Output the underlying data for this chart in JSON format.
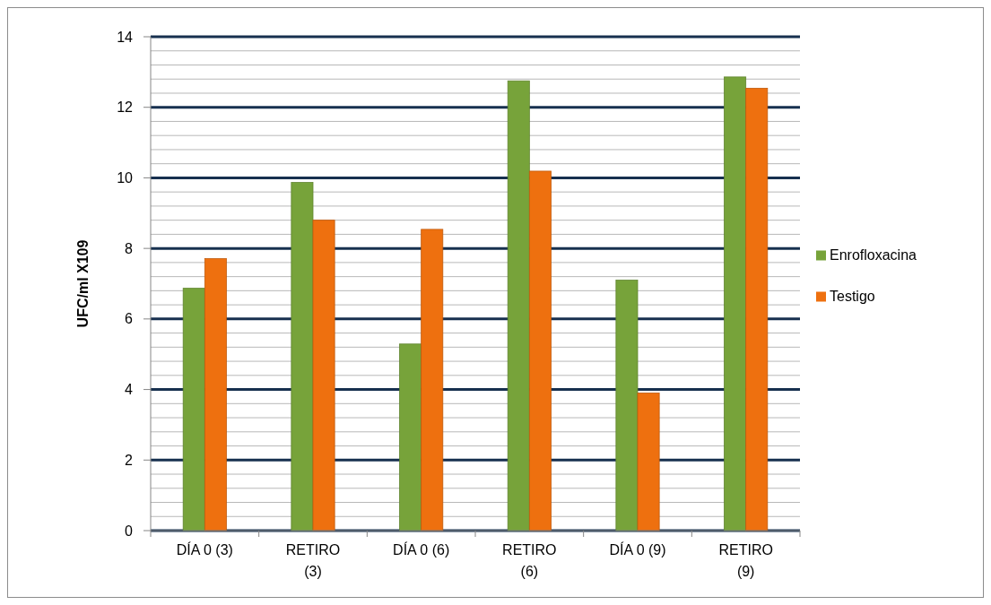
{
  "chart_data": {
    "type": "bar",
    "ylabel": "UFC/ml X109",
    "categories": [
      "DÍA 0 (3)",
      "RETIRO (3)",
      "DÍA 0 (6)",
      "RETIRO (6)",
      "DÍA 0 (9)",
      "RETIRO (9)"
    ],
    "series": [
      {
        "name": "Enrofloxacina",
        "color": "#77a33a",
        "values": [
          6.87,
          9.87,
          5.29,
          12.75,
          7.1,
          12.86
        ]
      },
      {
        "name": "Testigo",
        "color": "#ee700f",
        "values": [
          7.71,
          8.8,
          8.54,
          10.19,
          3.9,
          12.54
        ]
      }
    ],
    "ylim": [
      0,
      14
    ],
    "yticks": [
      0,
      {
        "value": 0.4,
        "label": null
      },
      {
        "value": 0.8,
        "label": null
      },
      {
        "value": 1.2,
        "label": null
      },
      {
        "value": 1.6,
        "label": null
      },
      2,
      {
        "value": 2.4,
        "label": null
      },
      {
        "value": 2.8,
        "label": null
      },
      {
        "value": 3.2,
        "label": null
      },
      {
        "value": 3.6,
        "label": null
      },
      4,
      {
        "value": 4.4,
        "label": null
      },
      {
        "value": 4.8,
        "label": null
      },
      {
        "value": 5.2,
        "label": null
      },
      {
        "value": 5.6,
        "label": null
      },
      6,
      {
        "value": 6.4,
        "label": null
      },
      {
        "value": 6.8,
        "label": null
      },
      {
        "value": 7.2,
        "label": null
      },
      {
        "value": 7.6,
        "label": null
      },
      8,
      {
        "value": 8.4,
        "label": null
      },
      {
        "value": 8.8,
        "label": null
      },
      {
        "value": 9.2,
        "label": null
      },
      {
        "value": 9.6,
        "label": null
      },
      10,
      {
        "value": 10.4,
        "label": null
      },
      {
        "value": 10.8,
        "label": null
      },
      {
        "value": 11.2,
        "label": null
      },
      {
        "value": 11.6,
        "label": null
      },
      12,
      {
        "value": 12.4,
        "label": null
      },
      {
        "value": 12.8,
        "label": null
      },
      {
        "value": 13.2,
        "label": null
      },
      {
        "value": 13.6,
        "label": null
      },
      14
    ],
    "grid": true,
    "legend": "right"
  }
}
